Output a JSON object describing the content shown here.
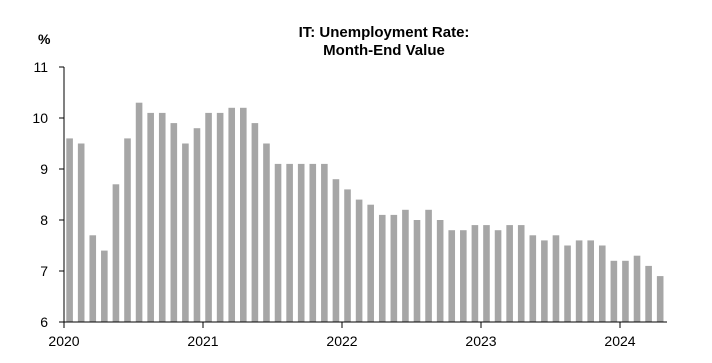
{
  "chart_data": {
    "type": "bar",
    "title_lines": [
      "IT: Unemployment Rate:",
      "Month-End Value"
    ],
    "unit_label": "%",
    "ylim": [
      6,
      11
    ],
    "y_ticks": [
      6,
      7,
      8,
      9,
      10,
      11
    ],
    "x_ticks": [
      "2020",
      "2021",
      "2022",
      "2023",
      "2024"
    ],
    "grid": false,
    "bar_color": "#a6a6a6",
    "series": [
      {
        "categories": [
          "2020-01",
          "2020-02",
          "2020-03",
          "2020-04",
          "2020-05",
          "2020-06",
          "2020-07",
          "2020-08",
          "2020-09",
          "2020-10",
          "2020-11",
          "2020-12",
          "2021-01",
          "2021-02",
          "2021-03",
          "2021-04",
          "2021-05",
          "2021-06",
          "2021-07",
          "2021-08",
          "2021-09",
          "2021-10",
          "2021-11",
          "2021-12",
          "2022-01",
          "2022-02",
          "2022-03",
          "2022-04",
          "2022-05",
          "2022-06",
          "2022-07",
          "2022-08",
          "2022-09",
          "2022-10",
          "2022-11",
          "2022-12",
          "2023-01",
          "2023-02",
          "2023-03",
          "2023-04",
          "2023-05",
          "2023-06",
          "2023-07",
          "2023-08",
          "2023-09",
          "2023-10",
          "2023-11",
          "2023-12",
          "2024-01",
          "2024-02",
          "2024-03",
          "2024-04"
        ],
        "values": [
          9.6,
          9.5,
          7.7,
          7.4,
          8.7,
          9.6,
          10.3,
          10.1,
          10.1,
          9.9,
          9.5,
          9.8,
          10.1,
          10.1,
          10.2,
          10.2,
          9.9,
          9.5,
          9.1,
          9.1,
          9.1,
          9.1,
          9.1,
          8.8,
          8.6,
          8.4,
          8.3,
          8.1,
          8.1,
          8.2,
          8.0,
          8.2,
          8.0,
          7.8,
          7.8,
          7.9,
          7.9,
          7.8,
          7.9,
          7.9,
          7.7,
          7.6,
          7.7,
          7.5,
          7.6,
          7.6,
          7.5,
          7.2,
          7.2,
          7.3,
          7.1,
          6.9
        ]
      }
    ]
  }
}
